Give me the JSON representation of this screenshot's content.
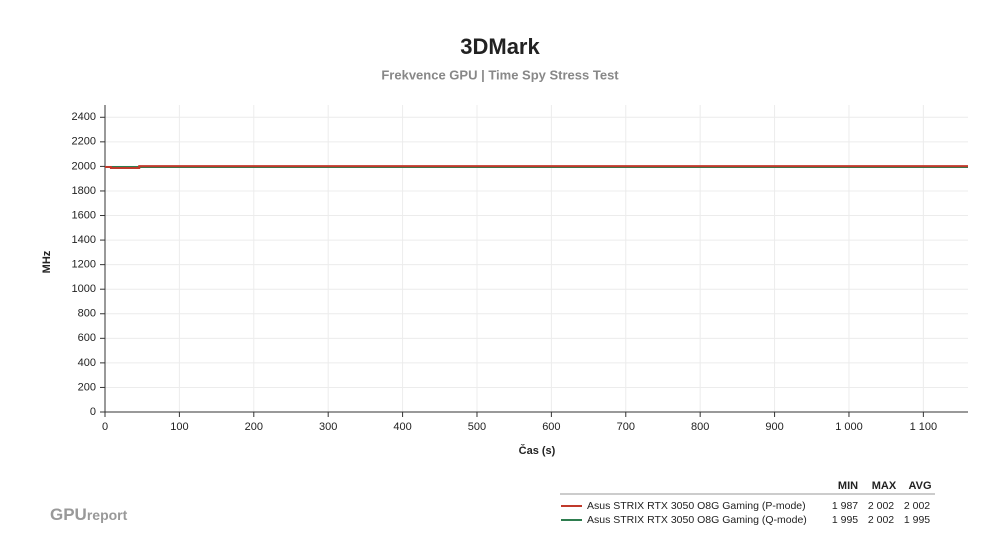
{
  "chart_data": {
    "type": "line",
    "title": "3DMark",
    "subtitle": "Frekvence GPU | Time Spy Stress Test",
    "x_label": "Čas (s)",
    "y_label": "MHz",
    "xlim": [
      0,
      1160
    ],
    "ylim": [
      0,
      2500
    ],
    "xticks": [
      0,
      100,
      200,
      300,
      400,
      500,
      600,
      700,
      800,
      900,
      {
        "value": 1000,
        "label": "1 000"
      },
      {
        "value": 1100,
        "label": "1 100"
      }
    ],
    "yticks": [
      0,
      200,
      400,
      600,
      800,
      1000,
      1200,
      1400,
      1600,
      1800,
      2000,
      2200,
      2400
    ],
    "grid": true,
    "legend_columns": [
      "MIN",
      "MAX",
      "AVG"
    ],
    "series": [
      {
        "name": "Asus STRIX RTX 3050 O8G Gaming (P-mode)",
        "color": "#c0392b",
        "x": [
          0,
          8,
          8,
          46,
          46,
          1160
        ],
        "values": [
          1995,
          1995,
          1987,
          1987,
          2002,
          2002
        ],
        "stats": [
          {
            "value": 1987,
            "label": "1 987"
          },
          {
            "value": 2002,
            "label": "2 002"
          },
          {
            "value": 2002,
            "label": "2 002"
          }
        ]
      },
      {
        "name": "Asus STRIX RTX 3050 O8G Gaming (Q-mode)",
        "color": "#2e7d4f",
        "x": [
          0,
          1160
        ],
        "values": [
          1995,
          1995
        ],
        "stats": [
          {
            "value": 1995,
            "label": "1 995"
          },
          {
            "value": 2002,
            "label": "2 002"
          },
          {
            "value": 1995,
            "label": "1 995"
          }
        ]
      }
    ],
    "logo": [
      "GPU",
      "report"
    ]
  }
}
